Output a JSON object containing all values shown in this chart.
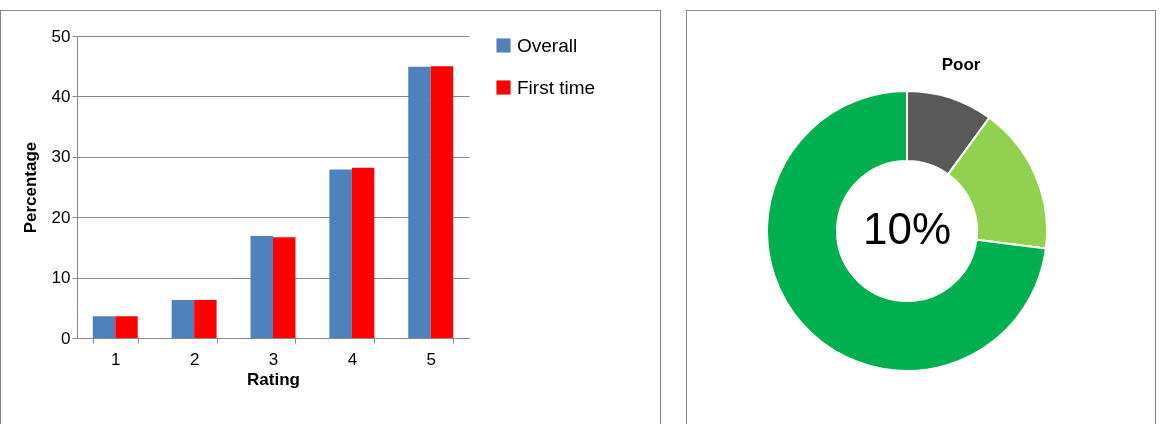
{
  "chart_data": [
    {
      "type": "bar",
      "categories": [
        "1",
        "2",
        "3",
        "4",
        "5"
      ],
      "xlabel": "Rating",
      "ylabel": "Percentage",
      "ylim": [
        0,
        50
      ],
      "yticks": [
        0,
        10,
        20,
        30,
        40,
        50
      ],
      "grid": "y",
      "legend": "right",
      "series": [
        {
          "name": "Overall",
          "color": "#4f81bd",
          "values": [
            3.6,
            6.3,
            16.9,
            27.9,
            44.9
          ]
        },
        {
          "name": "First time",
          "color": "#ff0000",
          "values": [
            3.6,
            6.3,
            16.7,
            28.2,
            45.0
          ]
        }
      ]
    },
    {
      "type": "donut",
      "categories": [
        "Poor",
        null,
        null
      ],
      "values": [
        10,
        17,
        73
      ],
      "colors": [
        "#595959",
        "#92d050",
        "#00b050"
      ],
      "annotations": [
        "10%"
      ]
    }
  ]
}
